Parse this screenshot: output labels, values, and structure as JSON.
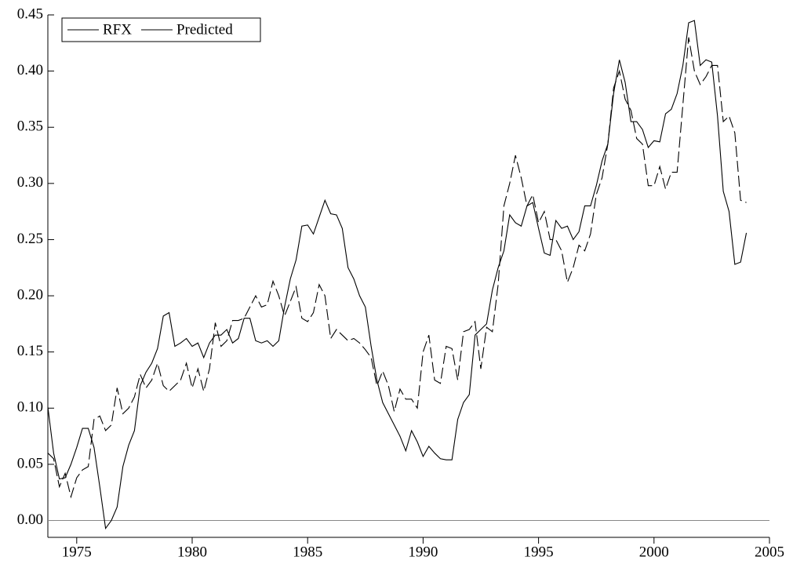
{
  "chart_data": {
    "type": "line",
    "x": [
      1973.75,
      1974,
      1974.25,
      1974.5,
      1974.75,
      1975,
      1975.25,
      1975.5,
      1975.75,
      1976,
      1976.25,
      1976.5,
      1976.75,
      1977,
      1977.25,
      1977.5,
      1977.75,
      1978,
      1978.25,
      1978.5,
      1978.75,
      1979,
      1979.25,
      1979.5,
      1979.75,
      1980,
      1980.25,
      1980.5,
      1980.75,
      1981,
      1981.25,
      1981.5,
      1981.75,
      1982,
      1982.25,
      1982.5,
      1982.75,
      1983,
      1983.25,
      1983.5,
      1983.75,
      1984,
      1984.25,
      1984.5,
      1984.75,
      1985,
      1985.25,
      1985.5,
      1985.75,
      1986,
      1986.25,
      1986.5,
      1986.75,
      1987,
      1987.25,
      1987.5,
      1987.75,
      1988,
      1988.25,
      1988.5,
      1988.75,
      1989,
      1989.25,
      1989.5,
      1989.75,
      1990,
      1990.25,
      1990.5,
      1990.75,
      1991,
      1991.25,
      1991.5,
      1991.75,
      1992,
      1992.25,
      1992.5,
      1992.75,
      1993,
      1993.25,
      1993.5,
      1993.75,
      1994,
      1994.25,
      1994.5,
      1994.75,
      1995,
      1995.25,
      1995.5,
      1995.75,
      1996,
      1996.25,
      1996.5,
      1996.75,
      1997,
      1997.25,
      1997.5,
      1997.75,
      1998,
      1998.25,
      1998.5,
      1998.75,
      1999,
      1999.25,
      1999.5,
      1999.75,
      2000,
      2000.25,
      2000.5,
      2000.75,
      2001,
      2001.25,
      2001.5,
      2001.75,
      2002,
      2002.25,
      2002.5,
      2002.75,
      2003,
      2003.25,
      2003.5,
      2003.75,
      2004
    ],
    "series": [
      {
        "name": "RFX",
        "color": "#000000",
        "dash": "none",
        "values": [
          0.101,
          0.06,
          0.037,
          0.038,
          0.05,
          0.065,
          0.082,
          0.082,
          0.065,
          0.03,
          -0.007,
          0.0,
          0.012,
          0.048,
          0.067,
          0.08,
          0.12,
          0.132,
          0.14,
          0.153,
          0.182,
          0.185,
          0.155,
          0.158,
          0.162,
          0.155,
          0.158,
          0.145,
          0.158,
          0.165,
          0.165,
          0.17,
          0.158,
          0.162,
          0.18,
          0.18,
          0.16,
          0.158,
          0.16,
          0.155,
          0.16,
          0.19,
          0.215,
          0.232,
          0.262,
          0.263,
          0.255,
          0.27,
          0.285,
          0.273,
          0.272,
          0.26,
          0.225,
          0.215,
          0.2,
          0.19,
          0.155,
          0.125,
          0.105,
          0.095,
          0.085,
          0.075,
          0.062,
          0.08,
          0.07,
          0.057,
          0.066,
          0.06,
          0.055,
          0.054,
          0.054,
          0.09,
          0.105,
          0.112,
          0.165,
          0.17,
          0.175,
          0.205,
          0.225,
          0.24,
          0.272,
          0.265,
          0.262,
          0.28,
          0.283,
          0.26,
          0.238,
          0.236,
          0.267,
          0.26,
          0.262,
          0.25,
          0.257,
          0.28,
          0.28,
          0.298,
          0.32,
          0.335,
          0.38,
          0.41,
          0.39,
          0.355,
          0.355,
          0.348,
          0.332,
          0.338,
          0.337,
          0.362,
          0.366,
          0.38,
          0.405,
          0.443,
          0.445,
          0.405,
          0.41,
          0.408,
          0.36,
          0.293,
          0.275,
          0.228,
          0.23,
          0.256
        ]
      },
      {
        "name": "Predicted",
        "color": "#000000",
        "dash": "14,5",
        "values": [
          0.06,
          0.055,
          0.03,
          0.042,
          0.021,
          0.038,
          0.045,
          0.048,
          0.09,
          0.093,
          0.08,
          0.085,
          0.118,
          0.095,
          0.1,
          0.11,
          0.13,
          0.118,
          0.125,
          0.14,
          0.12,
          0.115,
          0.12,
          0.125,
          0.14,
          0.118,
          0.135,
          0.115,
          0.135,
          0.176,
          0.155,
          0.16,
          0.178,
          0.178,
          0.18,
          0.19,
          0.2,
          0.19,
          0.192,
          0.213,
          0.2,
          0.182,
          0.195,
          0.208,
          0.18,
          0.177,
          0.185,
          0.21,
          0.2,
          0.162,
          0.17,
          0.165,
          0.16,
          0.162,
          0.158,
          0.152,
          0.145,
          0.12,
          0.133,
          0.12,
          0.097,
          0.117,
          0.108,
          0.108,
          0.1,
          0.15,
          0.165,
          0.125,
          0.122,
          0.155,
          0.153,
          0.125,
          0.168,
          0.17,
          0.177,
          0.135,
          0.172,
          0.168,
          0.21,
          0.28,
          0.3,
          0.325,
          0.305,
          0.28,
          0.29,
          0.265,
          0.275,
          0.25,
          0.25,
          0.24,
          0.212,
          0.225,
          0.245,
          0.24,
          0.255,
          0.29,
          0.305,
          0.335,
          0.385,
          0.4,
          0.375,
          0.365,
          0.34,
          0.335,
          0.298,
          0.298,
          0.315,
          0.295,
          0.31,
          0.31,
          0.37,
          0.43,
          0.4,
          0.388,
          0.395,
          0.405,
          0.405,
          0.355,
          0.36,
          0.345,
          0.285,
          0.283
        ]
      }
    ],
    "xlim": [
      1973.75,
      2005
    ],
    "xticks": [
      1975,
      1980,
      1985,
      1990,
      1995,
      2000,
      2005
    ],
    "ylim": [
      -0.015,
      0.45
    ],
    "yticks": [
      {
        "value": 0,
        "label": "0.00"
      },
      {
        "value": 0.05,
        "label": "0.05"
      },
      {
        "value": 0.1,
        "label": "0.10"
      },
      {
        "value": 0.15,
        "label": "0.15"
      },
      {
        "value": 0.2,
        "label": "0.20"
      },
      {
        "value": 0.25,
        "label": "0.25"
      },
      {
        "value": 0.3,
        "label": "0.30"
      },
      {
        "value": 0.35,
        "label": "0.35"
      },
      {
        "value": 0.4,
        "label": "0.40"
      },
      {
        "value": 0.45,
        "label": "0.45"
      }
    ],
    "legend": "top-left"
  }
}
